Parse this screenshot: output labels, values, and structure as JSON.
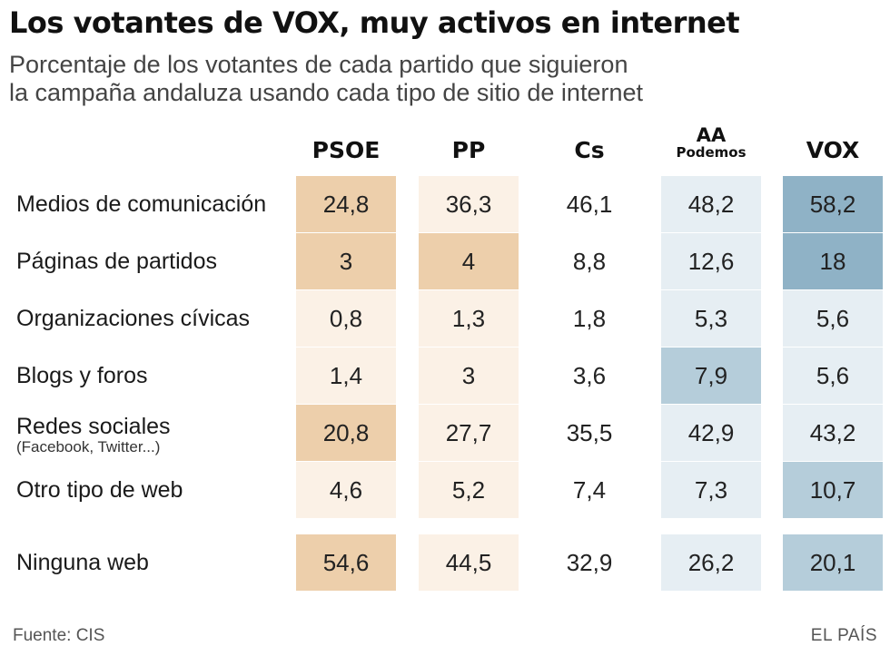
{
  "title": "Los votantes de VOX, muy activos en internet",
  "subtitle": [
    "Porcentaje de los votantes de cada partido que siguieron",
    "la campaña andaluza usando cada tipo de sitio de internet"
  ],
  "source": "Fuente: CIS",
  "brand": "EL PAÍS",
  "chart_data": {
    "type": "table",
    "columns": [
      {
        "key": "psoe",
        "label": "PSOE",
        "sublabel": ""
      },
      {
        "key": "pp",
        "label": "PP",
        "sublabel": ""
      },
      {
        "key": "cs",
        "label": "Cs",
        "sublabel": ""
      },
      {
        "key": "aa",
        "label": "AA",
        "sublabel": "Podemos"
      },
      {
        "key": "vox",
        "label": "VOX",
        "sublabel": ""
      }
    ],
    "rows": [
      {
        "label": "Medios de comunicación",
        "sublabel": "",
        "values": [
          "24,8",
          "36,3",
          "46,1",
          "48,2",
          "58,2"
        ],
        "colors": [
          "#edcfab",
          "#fbf1e6",
          "#ffffff",
          "#e6eef3",
          "#8fb2c6"
        ]
      },
      {
        "label": "Páginas de partidos",
        "sublabel": "",
        "values": [
          "3",
          "4",
          "8,8",
          "12,6",
          "18"
        ],
        "colors": [
          "#edcfab",
          "#edcfab",
          "#ffffff",
          "#e6eef3",
          "#8fb2c6"
        ]
      },
      {
        "label": "Organizaciones cívicas",
        "sublabel": "",
        "values": [
          "0,8",
          "1,3",
          "1,8",
          "5,3",
          "5,6"
        ],
        "colors": [
          "#fbf1e6",
          "#fbf1e6",
          "#ffffff",
          "#e6eef3",
          "#e6eef3"
        ]
      },
      {
        "label": "Blogs y foros",
        "sublabel": "",
        "values": [
          "1,4",
          "3",
          "3,6",
          "7,9",
          "5,6"
        ],
        "colors": [
          "#fbf1e6",
          "#fbf1e6",
          "#ffffff",
          "#b5cdda",
          "#e6eef3"
        ]
      },
      {
        "label": "Redes sociales",
        "sublabel": "(Facebook, Twitter...)",
        "values": [
          "20,8",
          "27,7",
          "35,5",
          "42,9",
          "43,2"
        ],
        "colors": [
          "#edcfab",
          "#fbf1e6",
          "#ffffff",
          "#e6eef3",
          "#e6eef3"
        ]
      },
      {
        "label": "Otro tipo de web",
        "sublabel": "",
        "values": [
          "4,6",
          "5,2",
          "7,4",
          "7,3",
          "10,7"
        ],
        "colors": [
          "#fbf1e6",
          "#fbf1e6",
          "#ffffff",
          "#e6eef3",
          "#b5cdda"
        ]
      },
      {
        "label": "Ninguna web",
        "sublabel": "",
        "values": [
          "54,6",
          "44,5",
          "32,9",
          "26,2",
          "20,1"
        ],
        "colors": [
          "#edcfab",
          "#fbf1e6",
          "#ffffff",
          "#e6eef3",
          "#b5cdda"
        ]
      }
    ]
  }
}
